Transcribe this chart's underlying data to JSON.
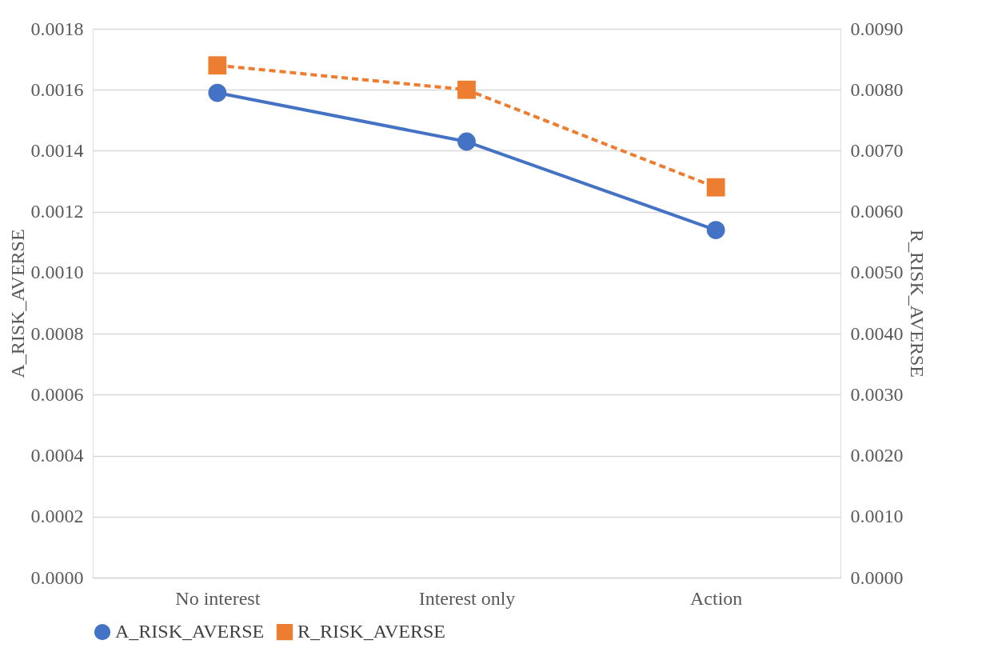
{
  "chart_data": {
    "type": "line",
    "categories": [
      "No interest",
      "Interest only",
      "Action"
    ],
    "ylabel": "A_RISK_AVERSE",
    "y2label": "R_RISK_AVERSE",
    "ylim": [
      0,
      0.0018
    ],
    "yticks": [
      {
        "value": 0,
        "label": "0.0000"
      },
      {
        "value": 0.0002,
        "label": "0.0002"
      },
      {
        "value": 0.0004,
        "label": "0.0004"
      },
      {
        "value": 0.0006,
        "label": "0.0006"
      },
      {
        "value": 0.0008,
        "label": "0.0008"
      },
      {
        "value": 0.001,
        "label": "0.0010"
      },
      {
        "value": 0.0012,
        "label": "0.0012"
      },
      {
        "value": 0.0014,
        "label": "0.0014"
      },
      {
        "value": 0.0016,
        "label": "0.0016"
      },
      {
        "value": 0.0018,
        "label": "0.0018"
      }
    ],
    "y2lim": [
      0,
      0.009
    ],
    "y2ticks": [
      {
        "value": 0,
        "label": "0.0000"
      },
      {
        "value": 0.001,
        "label": "0.0010"
      },
      {
        "value": 0.002,
        "label": "0.0020"
      },
      {
        "value": 0.003,
        "label": "0.0030"
      },
      {
        "value": 0.004,
        "label": "0.0040"
      },
      {
        "value": 0.005,
        "label": "0.0050"
      },
      {
        "value": 0.006,
        "label": "0.0060"
      },
      {
        "value": 0.007,
        "label": "0.0070"
      },
      {
        "value": 0.008,
        "label": "0.0080"
      },
      {
        "value": 0.009,
        "label": "0.0090"
      }
    ],
    "grid": "y",
    "legend": "bottom",
    "series": [
      {
        "name": "A_RISK_AVERSE",
        "color": "#4472c4",
        "values": [
          0.00159,
          0.00143,
          0.00114
        ],
        "marker": "circle",
        "line_style": "solid"
      },
      {
        "name": "R_RISK_AVERSE",
        "color": "#ed7d31",
        "values": [
          0.0084,
          0.008,
          0.0064
        ],
        "marker": "square",
        "line_style": "dashed",
        "axis": "y2"
      }
    ]
  }
}
